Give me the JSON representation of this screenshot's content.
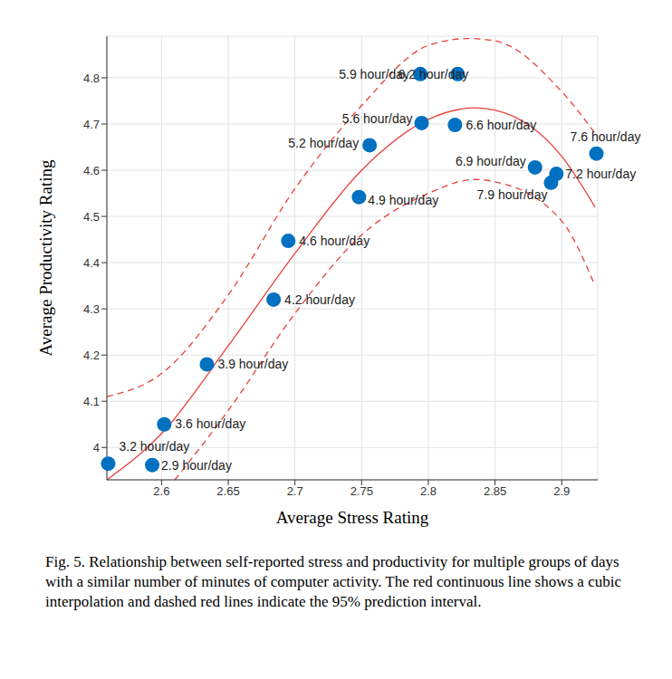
{
  "chart_data": {
    "type": "scatter",
    "x_label": "Average Stress Rating",
    "y_label": "Average Productivity Rating",
    "caption": "Fig. 5. Relationship between self-reported stress and productivity for multiple groups of days with a similar number of minutes of computer activity. The red continuous line shows a cubic interpolation and dashed red lines indicate the 95% prediction interval.",
    "xlim": [
      2.559,
      2.927
    ],
    "ylim": [
      3.93,
      4.89
    ],
    "xticks": [
      2.6,
      2.65,
      2.7,
      2.75,
      2.8,
      2.85,
      2.9
    ],
    "yticks": [
      4,
      4.1,
      4.2,
      4.3,
      4.4,
      4.5,
      4.6,
      4.7,
      4.8
    ],
    "grid": true,
    "series": [
      {
        "type": "line",
        "color": "#e8413c",
        "line_style": "dashed",
        "x": [
          2.559,
          2.6,
          2.65,
          2.7,
          2.75,
          2.8,
          2.83,
          2.85,
          2.9,
          2.925
        ],
        "values": [
          4.11,
          4.16,
          4.33,
          4.56,
          4.74,
          4.87,
          4.885,
          4.88,
          4.77,
          4.68
        ]
      },
      {
        "type": "line",
        "color": "#e8413c",
        "line_style": "dashed",
        "x": [
          2.61,
          2.65,
          2.7,
          2.75,
          2.8,
          2.835,
          2.85,
          2.9,
          2.925
        ],
        "values": [
          3.93,
          4.08,
          4.29,
          4.46,
          4.55,
          4.58,
          4.575,
          4.49,
          4.35
        ]
      },
      {
        "type": "line",
        "color": "#e8413c",
        "line_style": "solid",
        "x": [
          2.559,
          2.6,
          2.65,
          2.7,
          2.75,
          2.8,
          2.835,
          2.85,
          2.9,
          2.925
        ],
        "values": [
          3.93,
          4.03,
          4.22,
          4.42,
          4.6,
          4.71,
          4.735,
          4.73,
          4.63,
          4.52
        ]
      },
      {
        "type": "scatter",
        "color": "#0070c0",
        "marker": "circle",
        "x": [
          2.56,
          2.593,
          2.602,
          2.634,
          2.684,
          2.695,
          2.748,
          2.756,
          2.795,
          2.794,
          2.822,
          2.82,
          2.88,
          2.892,
          2.896,
          2.926
        ],
        "values": [
          3.965,
          3.962,
          4.05,
          4.18,
          4.32,
          4.447,
          4.542,
          4.654,
          4.702,
          4.808,
          4.808,
          4.698,
          4.606,
          4.573,
          4.592,
          4.636
        ],
        "labels": [
          "3.2 hour/day",
          "2.9 hour/day",
          "3.6 hour/day",
          "3.9 hour/day",
          "4.2 hour/day",
          "4.6 hour/day",
          "4.9 hour/day",
          "5.2 hour/day",
          "5.6 hour/day",
          "5.9 hour/day",
          "6.2 hour/day",
          "6.6 hour/day",
          "6.9 hour/day",
          "7.9 hour/day",
          "7.2 hour/day",
          "7.6 hour/day"
        ]
      }
    ]
  }
}
